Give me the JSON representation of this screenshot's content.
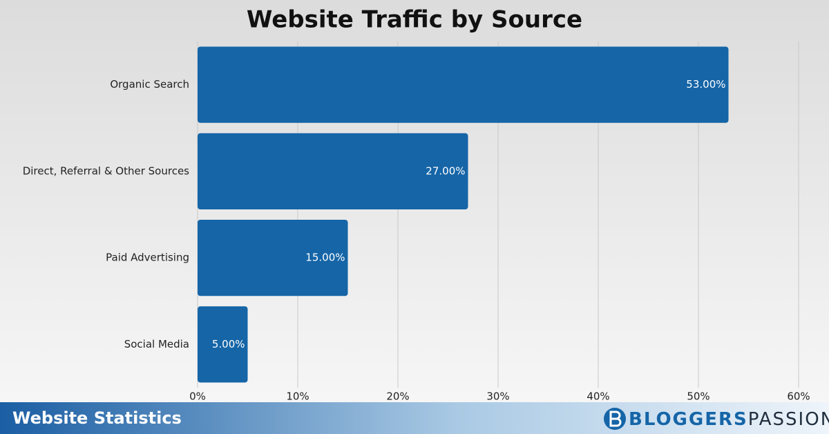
{
  "chart_data": {
    "type": "hbar",
    "title": "Website Traffic by Source",
    "categories": [
      "Organic Search",
      "Direct, Referral & Other Sources",
      "Paid Advertising",
      "Social Media"
    ],
    "values": [
      53,
      27,
      15,
      5
    ],
    "value_labels": [
      "53.00%",
      "27.00%",
      "15.00%",
      "5.00%"
    ],
    "color": "#1565a7",
    "xlim": [
      0,
      60
    ],
    "xticks": [
      {
        "value": 0,
        "label": "0%"
      },
      {
        "value": 10,
        "label": "10%"
      },
      {
        "value": 20,
        "label": "20%"
      },
      {
        "value": 30,
        "label": "30%"
      },
      {
        "value": 40,
        "label": "40%"
      },
      {
        "value": 50,
        "label": "50%"
      },
      {
        "value": 60,
        "label": "60%"
      }
    ],
    "grid": true
  },
  "footer": {
    "title": "Website Statistics",
    "brand_bold": "BLOGGERS",
    "brand_light": "PASSION"
  }
}
